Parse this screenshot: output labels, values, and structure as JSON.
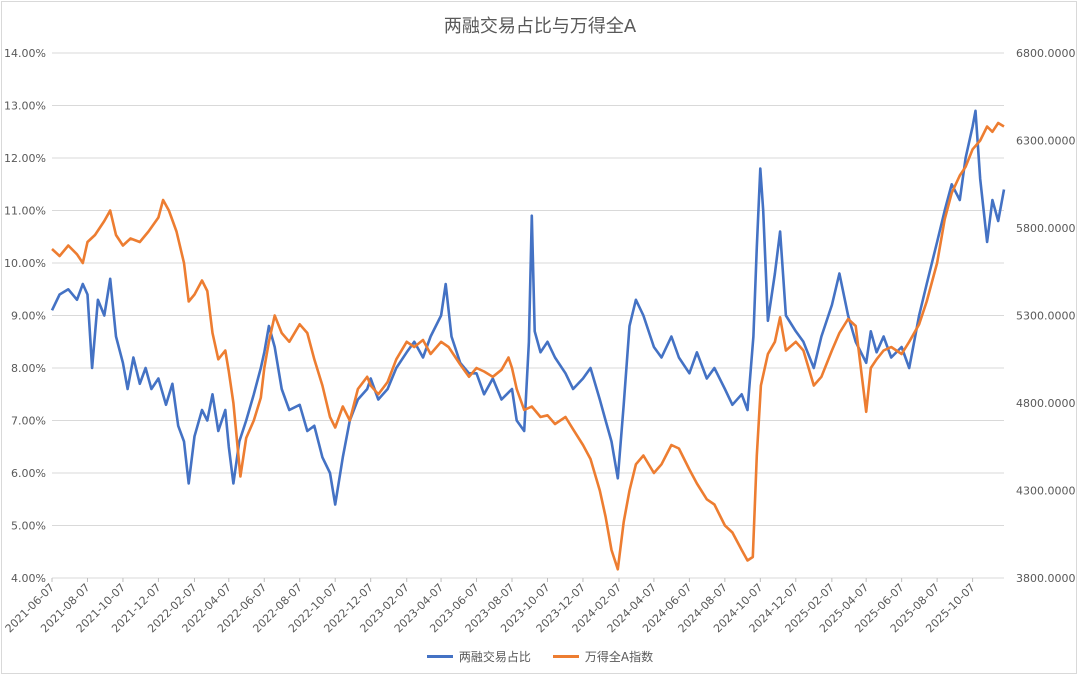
{
  "chart_data": {
    "type": "line",
    "title": "两融交易占比与万得全A",
    "left_axis": {
      "ticks": [
        "4.00%",
        "5.00%",
        "6.00%",
        "7.00%",
        "8.00%",
        "9.00%",
        "10.00%",
        "11.00%",
        "12.00%",
        "13.00%",
        "14.00%"
      ],
      "ylim": [
        4.0,
        14.0
      ],
      "unit": "%"
    },
    "right_axis": {
      "ticks": [
        "3800.0000",
        "4300.0000",
        "4800.0000",
        "5300.0000",
        "5800.0000",
        "6300.0000",
        "6800.0000"
      ],
      "ylim": [
        3800,
        6800
      ]
    },
    "x_ticks": [
      "2021-06-07",
      "2021-08-07",
      "2021-10-07",
      "2021-12-07",
      "2022-02-07",
      "2022-04-07",
      "2022-06-07",
      "2022-08-07",
      "2022-10-07",
      "2022-12-07",
      "2023-02-07",
      "2023-04-07",
      "2023-06-07",
      "2023-08-07",
      "2023-10-07",
      "2023-12-07",
      "2024-02-07",
      "2024-04-07",
      "2024-06-07",
      "2024-08-07",
      "2024-10-07",
      "2024-12-07",
      "2025-02-07",
      "2025-04-07",
      "2025-06-07",
      "2025-08-07",
      "2025-10-07"
    ],
    "x_range": [
      "2021-06-07",
      "2025-11-30"
    ],
    "grid": true,
    "legend_position": "bottom",
    "series": [
      {
        "name": "两融交易占比",
        "axis": "left",
        "color": "#4472C4",
        "points": [
          [
            "2021-06-07",
            9.1
          ],
          [
            "2021-06-20",
            9.4
          ],
          [
            "2021-07-05",
            9.5
          ],
          [
            "2021-07-20",
            9.3
          ],
          [
            "2021-07-30",
            9.6
          ],
          [
            "2021-08-07",
            9.4
          ],
          [
            "2021-08-15",
            8.0
          ],
          [
            "2021-08-25",
            9.3
          ],
          [
            "2021-09-05",
            9.0
          ],
          [
            "2021-09-15",
            9.7
          ],
          [
            "2021-09-25",
            8.6
          ],
          [
            "2021-10-07",
            8.1
          ],
          [
            "2021-10-15",
            7.6
          ],
          [
            "2021-10-25",
            8.2
          ],
          [
            "2021-11-05",
            7.7
          ],
          [
            "2021-11-15",
            8.0
          ],
          [
            "2021-11-25",
            7.6
          ],
          [
            "2021-12-07",
            7.8
          ],
          [
            "2021-12-20",
            7.3
          ],
          [
            "2021-12-31",
            7.7
          ],
          [
            "2022-01-10",
            6.9
          ],
          [
            "2022-01-20",
            6.6
          ],
          [
            "2022-01-28",
            5.8
          ],
          [
            "2022-02-07",
            6.7
          ],
          [
            "2022-02-20",
            7.2
          ],
          [
            "2022-03-01",
            7.0
          ],
          [
            "2022-03-10",
            7.5
          ],
          [
            "2022-03-20",
            6.8
          ],
          [
            "2022-04-01",
            7.2
          ],
          [
            "2022-04-07",
            6.5
          ],
          [
            "2022-04-15",
            5.8
          ],
          [
            "2022-04-25",
            6.6
          ],
          [
            "2022-05-07",
            7.0
          ],
          [
            "2022-05-20",
            7.5
          ],
          [
            "2022-06-01",
            8.0
          ],
          [
            "2022-06-07",
            8.3
          ],
          [
            "2022-06-15",
            8.8
          ],
          [
            "2022-06-25",
            8.4
          ],
          [
            "2022-07-07",
            7.6
          ],
          [
            "2022-07-20",
            7.2
          ],
          [
            "2022-08-07",
            7.3
          ],
          [
            "2022-08-20",
            6.8
          ],
          [
            "2022-09-01",
            6.9
          ],
          [
            "2022-09-15",
            6.3
          ],
          [
            "2022-09-28",
            6.0
          ],
          [
            "2022-10-07",
            5.4
          ],
          [
            "2022-10-20",
            6.3
          ],
          [
            "2022-11-01",
            7.0
          ],
          [
            "2022-11-15",
            7.4
          ],
          [
            "2022-12-01",
            7.6
          ],
          [
            "2022-12-07",
            7.8
          ],
          [
            "2022-12-20",
            7.4
          ],
          [
            "2023-01-05",
            7.6
          ],
          [
            "2023-01-20",
            8.0
          ],
          [
            "2023-02-07",
            8.3
          ],
          [
            "2023-02-20",
            8.5
          ],
          [
            "2023-03-07",
            8.2
          ],
          [
            "2023-03-20",
            8.6
          ],
          [
            "2023-04-07",
            9.0
          ],
          [
            "2023-04-15",
            9.6
          ],
          [
            "2023-04-25",
            8.6
          ],
          [
            "2023-05-10",
            8.1
          ],
          [
            "2023-05-25",
            7.9
          ],
          [
            "2023-06-07",
            7.9
          ],
          [
            "2023-06-20",
            7.5
          ],
          [
            "2023-07-05",
            7.8
          ],
          [
            "2023-07-20",
            7.4
          ],
          [
            "2023-08-07",
            7.6
          ],
          [
            "2023-08-15",
            7.0
          ],
          [
            "2023-08-28",
            6.8
          ],
          [
            "2023-09-05",
            8.5
          ],
          [
            "2023-09-10",
            10.9
          ],
          [
            "2023-09-15",
            8.7
          ],
          [
            "2023-09-25",
            8.3
          ],
          [
            "2023-10-07",
            8.5
          ],
          [
            "2023-10-20",
            8.2
          ],
          [
            "2023-11-07",
            7.9
          ],
          [
            "2023-11-20",
            7.6
          ],
          [
            "2023-12-07",
            7.8
          ],
          [
            "2023-12-20",
            8.0
          ],
          [
            "2024-01-05",
            7.4
          ],
          [
            "2024-01-15",
            7.0
          ],
          [
            "2024-01-25",
            6.6
          ],
          [
            "2024-02-05",
            5.9
          ],
          [
            "2024-02-15",
            7.3
          ],
          [
            "2024-02-25",
            8.8
          ],
          [
            "2024-03-07",
            9.3
          ],
          [
            "2024-03-20",
            9.0
          ],
          [
            "2024-04-07",
            8.4
          ],
          [
            "2024-04-20",
            8.2
          ],
          [
            "2024-05-07",
            8.6
          ],
          [
            "2024-05-20",
            8.2
          ],
          [
            "2024-06-07",
            7.9
          ],
          [
            "2024-06-20",
            8.3
          ],
          [
            "2024-07-07",
            7.8
          ],
          [
            "2024-07-20",
            8.0
          ],
          [
            "2024-08-07",
            7.6
          ],
          [
            "2024-08-20",
            7.3
          ],
          [
            "2024-09-05",
            7.5
          ],
          [
            "2024-09-15",
            7.2
          ],
          [
            "2024-09-25",
            8.6
          ],
          [
            "2024-10-01",
            10.3
          ],
          [
            "2024-10-07",
            11.8
          ],
          [
            "2024-10-12",
            11.0
          ],
          [
            "2024-10-20",
            8.9
          ],
          [
            "2024-11-01",
            9.8
          ],
          [
            "2024-11-10",
            10.6
          ],
          [
            "2024-11-20",
            9.0
          ],
          [
            "2024-12-07",
            8.7
          ],
          [
            "2024-12-20",
            8.5
          ],
          [
            "2025-01-07",
            8.0
          ],
          [
            "2025-01-20",
            8.6
          ],
          [
            "2025-02-07",
            9.2
          ],
          [
            "2025-02-20",
            9.8
          ],
          [
            "2025-03-07",
            9.0
          ],
          [
            "2025-03-20",
            8.5
          ],
          [
            "2025-04-07",
            8.1
          ],
          [
            "2025-04-15",
            8.7
          ],
          [
            "2025-04-25",
            8.3
          ],
          [
            "2025-05-07",
            8.6
          ],
          [
            "2025-05-20",
            8.2
          ],
          [
            "2025-06-07",
            8.4
          ],
          [
            "2025-06-20",
            8.0
          ],
          [
            "2025-07-07",
            9.0
          ],
          [
            "2025-07-20",
            9.6
          ],
          [
            "2025-08-07",
            10.4
          ],
          [
            "2025-08-20",
            11.0
          ],
          [
            "2025-09-01",
            11.5
          ],
          [
            "2025-09-15",
            11.2
          ],
          [
            "2025-09-25",
            12.0
          ],
          [
            "2025-10-07",
            12.6
          ],
          [
            "2025-10-12",
            12.9
          ],
          [
            "2025-10-20",
            11.6
          ],
          [
            "2025-11-01",
            10.4
          ],
          [
            "2025-11-10",
            11.2
          ],
          [
            "2025-11-20",
            10.8
          ],
          [
            "2025-11-30",
            11.4
          ]
        ]
      },
      {
        "name": "万得全A指数",
        "axis": "right",
        "color": "#ED7D31",
        "points": [
          [
            "2021-06-07",
            5680
          ],
          [
            "2021-06-20",
            5640
          ],
          [
            "2021-07-05",
            5700
          ],
          [
            "2021-07-20",
            5650
          ],
          [
            "2021-07-30",
            5600
          ],
          [
            "2021-08-07",
            5720
          ],
          [
            "2021-08-20",
            5760
          ],
          [
            "2021-09-05",
            5840
          ],
          [
            "2021-09-15",
            5900
          ],
          [
            "2021-09-25",
            5760
          ],
          [
            "2021-10-07",
            5700
          ],
          [
            "2021-10-20",
            5740
          ],
          [
            "2021-11-05",
            5720
          ],
          [
            "2021-11-20",
            5780
          ],
          [
            "2021-12-07",
            5860
          ],
          [
            "2021-12-15",
            5960
          ],
          [
            "2021-12-25",
            5900
          ],
          [
            "2022-01-07",
            5780
          ],
          [
            "2022-01-20",
            5600
          ],
          [
            "2022-01-28",
            5380
          ],
          [
            "2022-02-07",
            5420
          ],
          [
            "2022-02-20",
            5500
          ],
          [
            "2022-03-01",
            5440
          ],
          [
            "2022-03-10",
            5200
          ],
          [
            "2022-03-20",
            5050
          ],
          [
            "2022-04-01",
            5100
          ],
          [
            "2022-04-07",
            4980
          ],
          [
            "2022-04-15",
            4800
          ],
          [
            "2022-04-27",
            4380
          ],
          [
            "2022-05-07",
            4600
          ],
          [
            "2022-05-20",
            4700
          ],
          [
            "2022-06-01",
            4830
          ],
          [
            "2022-06-07",
            5000
          ],
          [
            "2022-06-15",
            5150
          ],
          [
            "2022-06-25",
            5300
          ],
          [
            "2022-07-07",
            5200
          ],
          [
            "2022-07-20",
            5150
          ],
          [
            "2022-08-07",
            5250
          ],
          [
            "2022-08-20",
            5200
          ],
          [
            "2022-09-01",
            5050
          ],
          [
            "2022-09-15",
            4900
          ],
          [
            "2022-09-28",
            4720
          ],
          [
            "2022-10-07",
            4660
          ],
          [
            "2022-10-20",
            4780
          ],
          [
            "2022-11-01",
            4700
          ],
          [
            "2022-11-15",
            4880
          ],
          [
            "2022-12-01",
            4950
          ],
          [
            "2022-12-07",
            4900
          ],
          [
            "2022-12-20",
            4850
          ],
          [
            "2023-01-05",
            4920
          ],
          [
            "2023-01-20",
            5050
          ],
          [
            "2023-02-07",
            5150
          ],
          [
            "2023-02-20",
            5120
          ],
          [
            "2023-03-07",
            5160
          ],
          [
            "2023-03-20",
            5080
          ],
          [
            "2023-04-07",
            5150
          ],
          [
            "2023-04-20",
            5120
          ],
          [
            "2023-05-10",
            5020
          ],
          [
            "2023-05-25",
            4950
          ],
          [
            "2023-06-07",
            5000
          ],
          [
            "2023-06-20",
            4980
          ],
          [
            "2023-07-05",
            4950
          ],
          [
            "2023-07-20",
            4990
          ],
          [
            "2023-08-01",
            5060
          ],
          [
            "2023-08-07",
            5000
          ],
          [
            "2023-08-15",
            4880
          ],
          [
            "2023-08-28",
            4760
          ],
          [
            "2023-09-10",
            4780
          ],
          [
            "2023-09-25",
            4720
          ],
          [
            "2023-10-07",
            4730
          ],
          [
            "2023-10-20",
            4680
          ],
          [
            "2023-11-07",
            4720
          ],
          [
            "2023-11-20",
            4650
          ],
          [
            "2023-12-07",
            4560
          ],
          [
            "2023-12-20",
            4480
          ],
          [
            "2024-01-05",
            4300
          ],
          [
            "2024-01-15",
            4150
          ],
          [
            "2024-01-25",
            3960
          ],
          [
            "2024-02-05",
            3850
          ],
          [
            "2024-02-15",
            4120
          ],
          [
            "2024-02-25",
            4300
          ],
          [
            "2024-03-07",
            4450
          ],
          [
            "2024-03-20",
            4500
          ],
          [
            "2024-04-07",
            4400
          ],
          [
            "2024-04-20",
            4450
          ],
          [
            "2024-05-07",
            4560
          ],
          [
            "2024-05-20",
            4540
          ],
          [
            "2024-06-07",
            4420
          ],
          [
            "2024-06-20",
            4340
          ],
          [
            "2024-07-07",
            4250
          ],
          [
            "2024-07-20",
            4220
          ],
          [
            "2024-08-07",
            4100
          ],
          [
            "2024-08-20",
            4060
          ],
          [
            "2024-09-05",
            3960
          ],
          [
            "2024-09-15",
            3900
          ],
          [
            "2024-09-24",
            3920
          ],
          [
            "2024-10-01",
            4500
          ],
          [
            "2024-10-08",
            4900
          ],
          [
            "2024-10-20",
            5080
          ],
          [
            "2024-11-01",
            5150
          ],
          [
            "2024-11-10",
            5290
          ],
          [
            "2024-11-20",
            5100
          ],
          [
            "2024-12-07",
            5150
          ],
          [
            "2024-12-20",
            5100
          ],
          [
            "2025-01-07",
            4900
          ],
          [
            "2025-01-20",
            4950
          ],
          [
            "2025-02-07",
            5100
          ],
          [
            "2025-02-20",
            5200
          ],
          [
            "2025-03-07",
            5280
          ],
          [
            "2025-03-20",
            5240
          ],
          [
            "2025-04-07",
            4750
          ],
          [
            "2025-04-15",
            5000
          ],
          [
            "2025-04-25",
            5050
          ],
          [
            "2025-05-07",
            5100
          ],
          [
            "2025-05-20",
            5120
          ],
          [
            "2025-06-07",
            5080
          ],
          [
            "2025-06-20",
            5150
          ],
          [
            "2025-07-07",
            5250
          ],
          [
            "2025-07-20",
            5380
          ],
          [
            "2025-08-07",
            5600
          ],
          [
            "2025-08-20",
            5850
          ],
          [
            "2025-09-01",
            6000
          ],
          [
            "2025-09-15",
            6100
          ],
          [
            "2025-09-25",
            6150
          ],
          [
            "2025-10-07",
            6250
          ],
          [
            "2025-10-20",
            6300
          ],
          [
            "2025-11-01",
            6380
          ],
          [
            "2025-11-10",
            6350
          ],
          [
            "2025-11-20",
            6400
          ],
          [
            "2025-11-30",
            6380
          ]
        ]
      }
    ]
  }
}
